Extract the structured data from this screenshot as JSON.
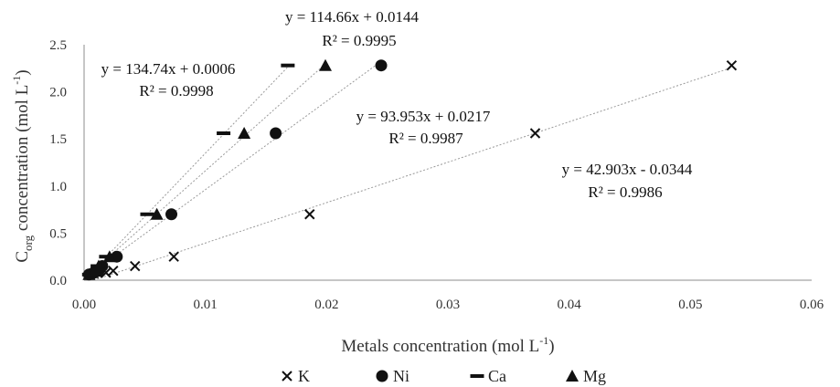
{
  "chart_data": {
    "type": "scatter",
    "xlabel": "Metals concentration (mol L-1)",
    "ylabel": "Corg concentration (mol L-1)",
    "xlim": [
      0,
      0.06
    ],
    "ylim": [
      0,
      2.5
    ],
    "x_ticks": [
      "0.00",
      "0.01",
      "0.02",
      "0.03",
      "0.04",
      "0.05",
      "0.06"
    ],
    "y_ticks": [
      "0.0",
      "0.5",
      "1.0",
      "1.5",
      "2.0",
      "2.5"
    ],
    "grid": false,
    "legend_position": "bottom",
    "series": [
      {
        "name": "K",
        "marker": "x",
        "x": [
          0.0005,
          0.0011,
          0.0018,
          0.0024,
          0.0042,
          0.0074,
          0.0186,
          0.0372,
          0.0534
        ],
        "y": [
          0.06,
          0.08,
          0.08,
          0.1,
          0.15,
          0.25,
          0.7,
          1.56,
          2.28
        ],
        "trendline": {
          "slope": 42.903,
          "intercept": -0.0344,
          "equation": "y = 42.903x - 0.0344",
          "r2": "R² = 0.9986"
        }
      },
      {
        "name": "Ni",
        "marker": "circle",
        "x": [
          0.0004,
          0.0008,
          0.0012,
          0.0015,
          0.0027,
          0.0072,
          0.0158,
          0.0245
        ],
        "y": [
          0.06,
          0.08,
          0.1,
          0.15,
          0.25,
          0.7,
          1.56,
          2.28
        ],
        "trendline": {
          "slope": 93.953,
          "intercept": 0.0217,
          "equation": "y = 93.953x + 0.0217",
          "r2": "R² = 0.9987"
        }
      },
      {
        "name": "Ca",
        "marker": "dash",
        "x": [
          0.0004,
          0.0006,
          0.0008,
          0.0011,
          0.0018,
          0.0052,
          0.0115,
          0.0168
        ],
        "y": [
          0.06,
          0.08,
          0.1,
          0.15,
          0.25,
          0.7,
          1.56,
          2.28
        ],
        "trendline": {
          "slope": 134.74,
          "intercept": 0.0006,
          "equation": "y = 134.74x + 0.0006",
          "r2": "R² = 0.9998"
        }
      },
      {
        "name": "Mg",
        "marker": "triangle",
        "x": [
          0.0004,
          0.0007,
          0.0009,
          0.0012,
          0.0021,
          0.006,
          0.0132,
          0.0199
        ],
        "y": [
          0.06,
          0.08,
          0.1,
          0.15,
          0.25,
          0.7,
          1.56,
          2.28
        ],
        "trendline": {
          "slope": 114.66,
          "intercept": 0.0144,
          "equation": "y = 114.66x + 0.0144",
          "r2": "R² = 0.9995"
        }
      }
    ]
  }
}
